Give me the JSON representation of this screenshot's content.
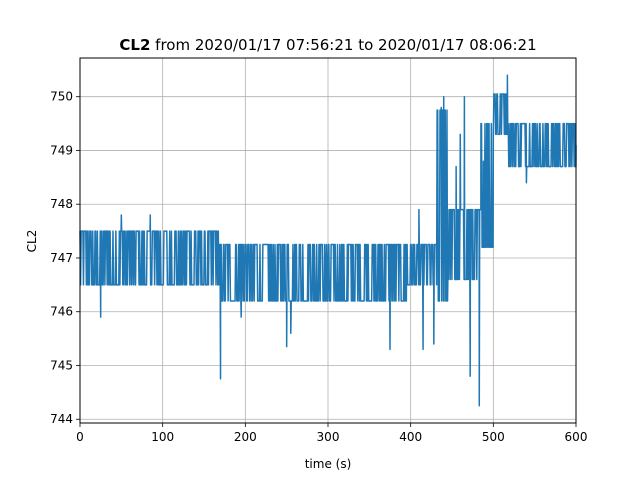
{
  "chart_data": {
    "type": "line",
    "title_bold": "CL2",
    "title_rest": " from 2020/01/17 07:56:21 to 2020/01/17 08:06:21",
    "xlabel": "time (s)",
    "ylabel": "CL2",
    "xlim": [
      0,
      600
    ],
    "ylim": [
      743.93,
      750.72
    ],
    "xticks": [
      0,
      100,
      200,
      300,
      400,
      500,
      600
    ],
    "yticks": [
      744,
      745,
      746,
      747,
      748,
      749,
      750
    ],
    "grid": true,
    "color": "#1f77b4",
    "series": [
      {
        "segments": [
          {
            "x0": 0,
            "x1": 168,
            "lo": 746.5,
            "hi": 747.5
          },
          {
            "x0": 168,
            "x1": 245,
            "lo": 746.2,
            "hi": 747.25
          },
          {
            "x0": 245,
            "x1": 395,
            "lo": 746.2,
            "hi": 747.25
          },
          {
            "x0": 395,
            "x1": 432,
            "lo": 746.5,
            "hi": 747.25
          },
          {
            "x0": 432,
            "x1": 445,
            "lo": 746.2,
            "hi": 749.75
          },
          {
            "x0": 445,
            "x1": 485,
            "lo": 746.6,
            "hi": 747.9
          },
          {
            "x0": 485,
            "x1": 500,
            "lo": 747.2,
            "hi": 749.5
          },
          {
            "x0": 500,
            "x1": 518,
            "lo": 749.3,
            "hi": 750.05
          },
          {
            "x0": 518,
            "x1": 600,
            "lo": 748.7,
            "hi": 749.5
          }
        ],
        "spikes": [
          [
            25,
            745.9
          ],
          [
            50,
            747.8
          ],
          [
            85,
            747.8
          ],
          [
            170,
            744.75
          ],
          [
            195,
            745.9
          ],
          [
            250,
            745.35
          ],
          [
            255,
            745.6
          ],
          [
            375,
            745.3
          ],
          [
            410,
            747.9
          ],
          [
            415,
            745.3
          ],
          [
            428,
            745.4
          ],
          [
            437,
            749.8
          ],
          [
            440,
            750.0
          ],
          [
            455,
            748.7
          ],
          [
            460,
            749.3
          ],
          [
            465,
            750.0
          ],
          [
            472,
            744.8
          ],
          [
            483,
            744.25
          ],
          [
            488,
            748.8
          ],
          [
            517,
            750.4
          ],
          [
            540,
            748.4
          ]
        ]
      }
    ]
  }
}
